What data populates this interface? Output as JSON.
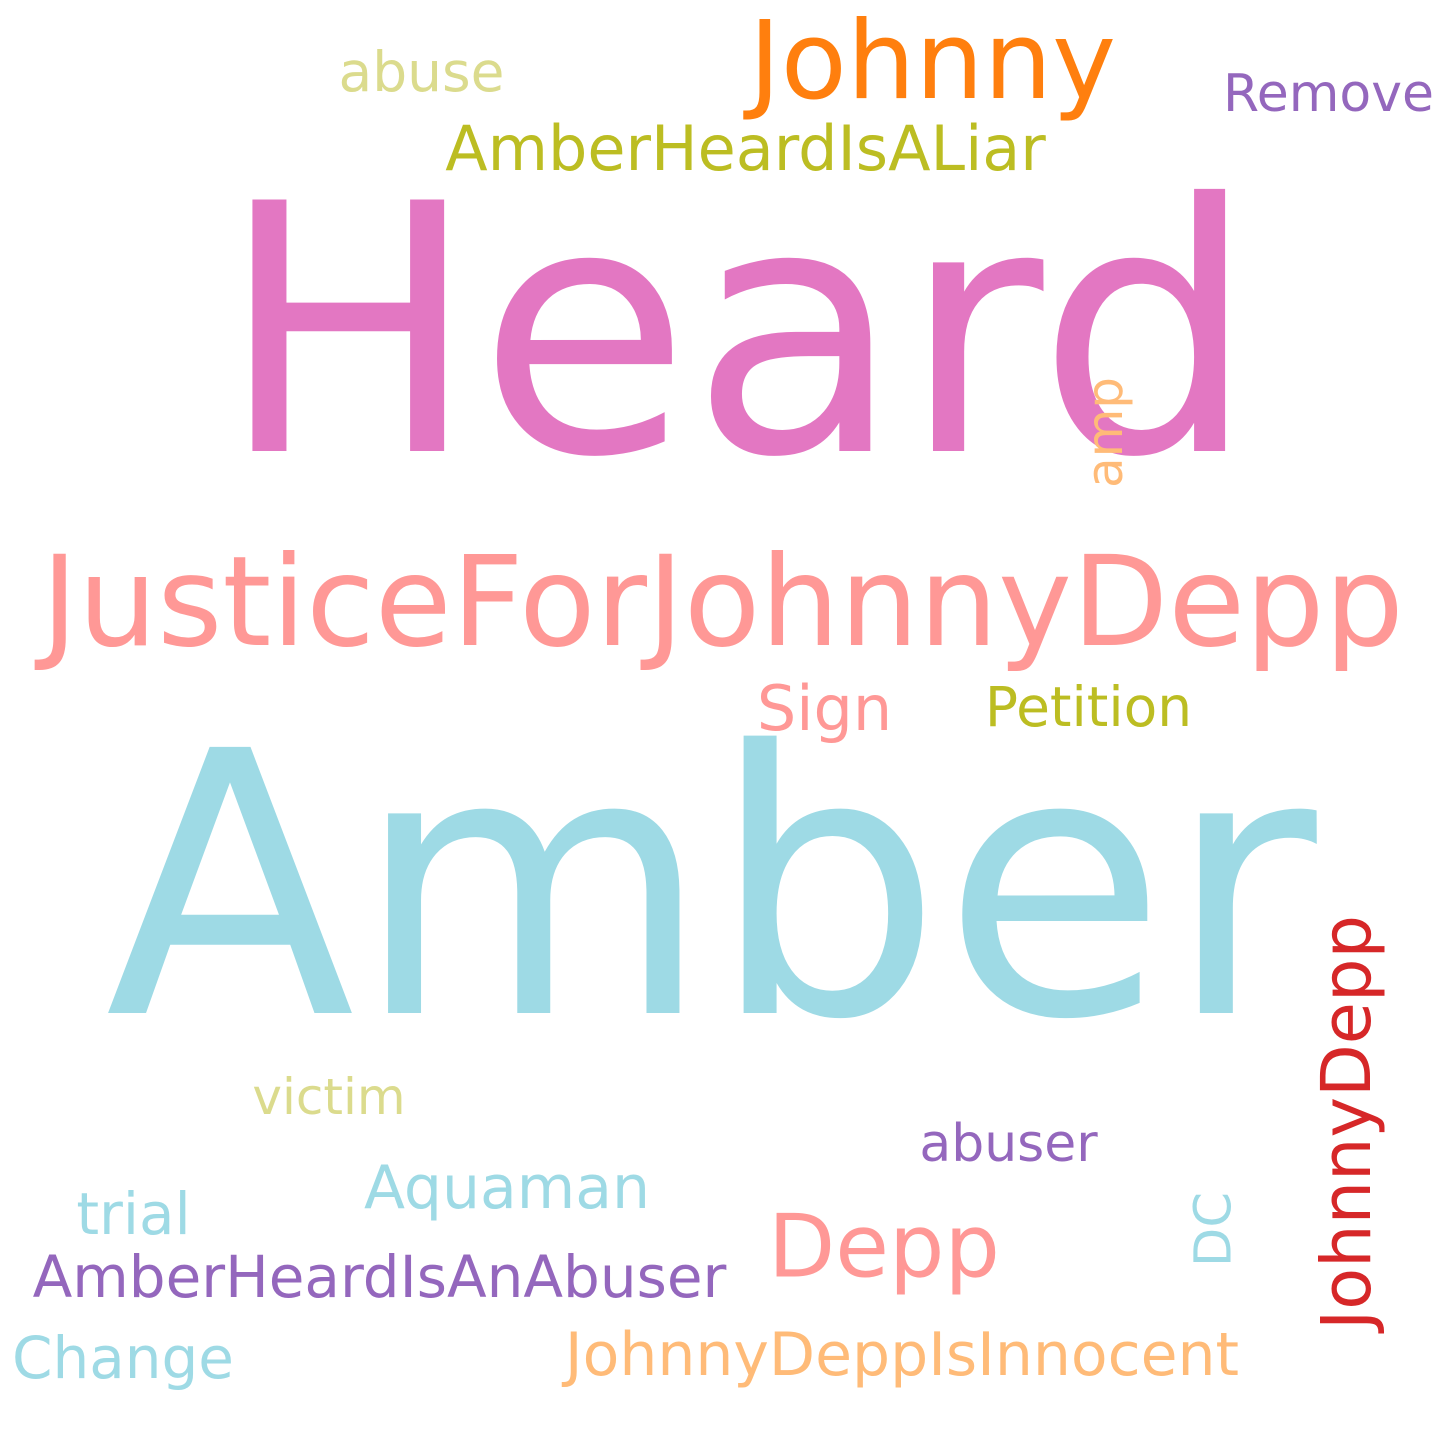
{
  "words": [
    {
      "text": "Heard",
      "color": "#e377c2",
      "rotated": false
    },
    {
      "text": "Amber",
      "color": "#9edae5",
      "rotated": false
    },
    {
      "text": "JusticeForJohnnyDepp",
      "color": "#ff9896",
      "rotated": false
    },
    {
      "text": "Johnny",
      "color": "#ff7f0e",
      "rotated": false
    },
    {
      "text": "AmberHeardIsALiar",
      "color": "#bcbd22",
      "rotated": false
    },
    {
      "text": "abuse",
      "color": "#dbdb8d",
      "rotated": false
    },
    {
      "text": "Remove",
      "color": "#9467bd",
      "rotated": false
    },
    {
      "text": "amp",
      "color": "#ffbb78",
      "rotated": true
    },
    {
      "text": "Sign",
      "color": "#ff9896",
      "rotated": false
    },
    {
      "text": "Petition",
      "color": "#bcbd22",
      "rotated": false
    },
    {
      "text": "JohnnyDepp",
      "color": "#d62728",
      "rotated": true
    },
    {
      "text": "victim",
      "color": "#dbdb8d",
      "rotated": false
    },
    {
      "text": "abuser",
      "color": "#9467bd",
      "rotated": false
    },
    {
      "text": "Aquaman",
      "color": "#9edae5",
      "rotated": false
    },
    {
      "text": "Depp",
      "color": "#ff9896",
      "rotated": false
    },
    {
      "text": "DC",
      "color": "#9edae5",
      "rotated": true
    },
    {
      "text": "trial",
      "color": "#9edae5",
      "rotated": false
    },
    {
      "text": "AmberHeardIsAnAbuser",
      "color": "#9467bd",
      "rotated": false
    },
    {
      "text": "Change",
      "color": "#9edae5",
      "rotated": false
    },
    {
      "text": "JohnnyDeppIsInnocent",
      "color": "#ffbb78",
      "rotated": false
    }
  ]
}
